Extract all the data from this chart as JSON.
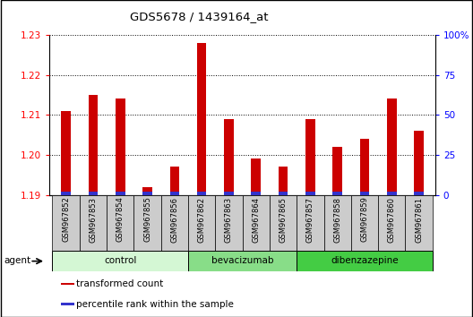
{
  "title": "GDS5678 / 1439164_at",
  "samples": [
    "GSM967852",
    "GSM967853",
    "GSM967854",
    "GSM967855",
    "GSM967856",
    "GSM967862",
    "GSM967863",
    "GSM967864",
    "GSM967865",
    "GSM967857",
    "GSM967858",
    "GSM967859",
    "GSM967860",
    "GSM967861"
  ],
  "transformed_count": [
    1.211,
    1.215,
    1.214,
    1.192,
    1.197,
    1.228,
    1.209,
    1.199,
    1.197,
    1.209,
    1.202,
    1.204,
    1.214,
    1.206
  ],
  "percentile_rank": [
    2,
    2,
    2,
    2,
    2,
    2,
    2,
    2,
    2,
    2,
    2,
    2,
    2,
    2
  ],
  "ylim_left": [
    1.19,
    1.23
  ],
  "ylim_right": [
    0,
    100
  ],
  "yticks_left": [
    1.19,
    1.2,
    1.21,
    1.22,
    1.23
  ],
  "yticks_right": [
    0,
    25,
    50,
    75,
    100
  ],
  "ytick_labels_right": [
    "0",
    "25",
    "50",
    "75",
    "100%"
  ],
  "bar_color": "#cc0000",
  "percentile_color": "#3333cc",
  "groups": [
    {
      "label": "control",
      "start": 0,
      "end": 5,
      "color": "#d4f7d4"
    },
    {
      "label": "bevacizumab",
      "start": 5,
      "end": 9,
      "color": "#88dd88"
    },
    {
      "label": "dibenzazepine",
      "start": 9,
      "end": 14,
      "color": "#44cc44"
    }
  ],
  "agent_label": "agent",
  "legend_items": [
    {
      "label": "transformed count",
      "color": "#cc0000"
    },
    {
      "label": "percentile rank within the sample",
      "color": "#3333cc"
    }
  ],
  "plot_bg_color": "#ffffff",
  "sample_box_color": "#cccccc",
  "bar_width": 0.35
}
